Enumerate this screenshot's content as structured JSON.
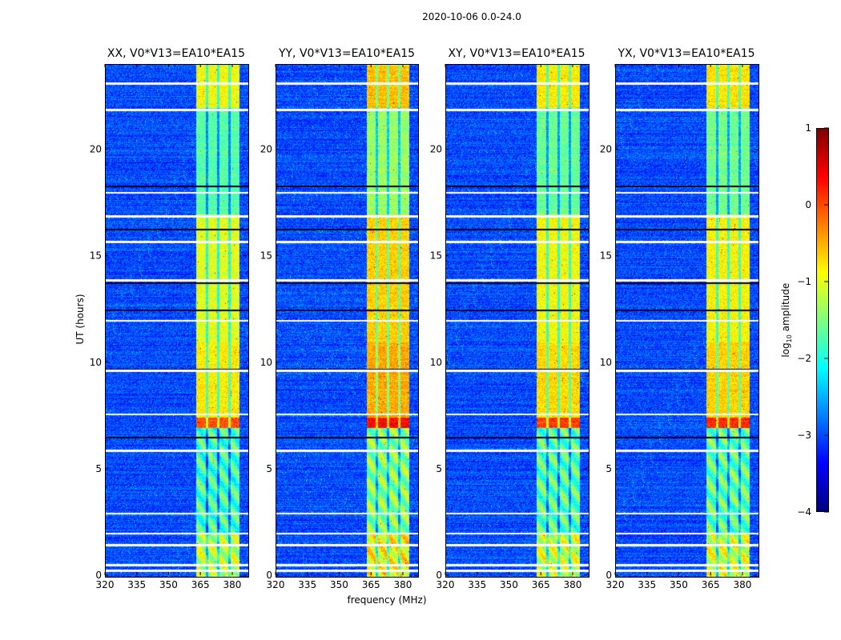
{
  "chart_data": {
    "type": "heatmap",
    "title": "2020-10-06 0.0-24.0",
    "xlabel": "frequency (MHz)",
    "ylabel": "UT (hours)",
    "xlim": [
      320,
      386.8
    ],
    "ylim": [
      0,
      24
    ],
    "xticks": [
      "320",
      "335",
      "350",
      "365",
      "380"
    ],
    "xtick_values": [
      320,
      335,
      350,
      365,
      380
    ],
    "yticks": [
      "0",
      "5",
      "10",
      "15",
      "20"
    ],
    "ytick_values": [
      0,
      5,
      10,
      15,
      20
    ],
    "panels": [
      {
        "title": "XX, V0*V13=EA10*EA15",
        "band_boost": 0
      },
      {
        "title": "YY, V0*V13=EA10*EA15",
        "band_boost": 0.35
      },
      {
        "title": "XY, V0*V13=EA10*EA15",
        "band_boost": 0.1
      },
      {
        "title": "YX, V0*V13=EA10*EA15",
        "band_boost": 0.15
      }
    ],
    "colorbar": {
      "label": "log10 amplitude",
      "label_main": "log",
      "label_sub": "10",
      "label_rest": " amplitude",
      "colormap": "jet",
      "range": [
        -4,
        1
      ],
      "ticks": [
        "1",
        "0",
        "−1",
        "−2",
        "−3",
        "−4"
      ],
      "tick_values": [
        1,
        0,
        -1,
        -2,
        -3,
        -4
      ]
    },
    "background_level": -3.0,
    "rfi_band_mhz": [
      362.3,
      382.5
    ],
    "band_subchannel_gaps_mhz": [
      367.2,
      372.5,
      377.8
    ],
    "band_levels": [
      {
        "ut": [
          0,
          2
        ],
        "level": -1.0
      },
      {
        "ut": [
          2,
          7.0
        ],
        "level": -1.6
      },
      {
        "ut": [
          7.0,
          7.5
        ],
        "level": 0.0
      },
      {
        "ut": [
          7.5,
          11
        ],
        "level": -0.8
      },
      {
        "ut": [
          11,
          17
        ],
        "level": -1.0
      },
      {
        "ut": [
          17,
          22
        ],
        "level": -1.7
      },
      {
        "ut": [
          22,
          24
        ],
        "level": -0.9
      }
    ],
    "flagged_rows_ut": [
      0.26,
      0.53,
      1.47,
      2.0,
      2.95,
      5.9,
      7.6,
      9.65,
      12.0,
      13.9,
      15.7,
      16.9,
      18.0,
      21.9,
      23.13
    ],
    "dark_rows_ut": [
      6.5,
      9.7,
      12.5,
      13.75,
      16.3,
      18.3
    ]
  }
}
